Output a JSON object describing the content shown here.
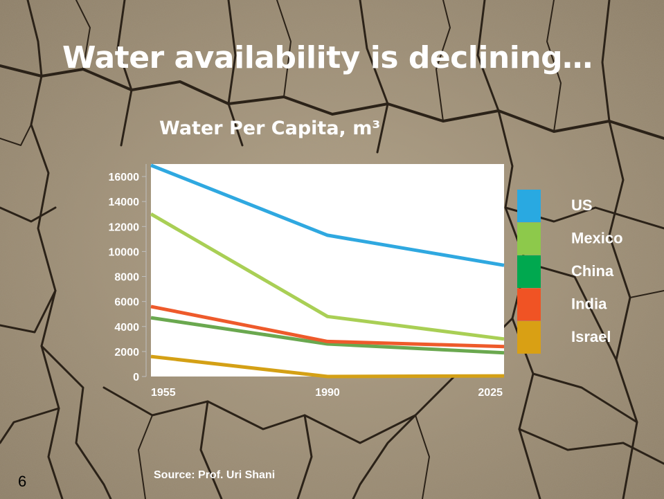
{
  "slide": {
    "title": "Water availability is declining…",
    "number": "6",
    "source": "Source: Prof. Uri Shani"
  },
  "chart_data": {
    "type": "line",
    "title": "Water Per Capita, m³",
    "x": [
      "1955",
      "1990",
      "2025"
    ],
    "xlabel": "",
    "ylabel": "",
    "ylim": [
      0,
      17000
    ],
    "yticks": [
      0,
      2000,
      4000,
      6000,
      8000,
      10000,
      12000,
      14000,
      16000
    ],
    "grid": false,
    "legend_position": "right",
    "series": [
      {
        "name": "US",
        "color": "#2fa8e0",
        "values": [
          16900,
          11300,
          8900
        ]
      },
      {
        "name": "Mexico",
        "color": "#a9cf55",
        "values": [
          13000,
          4800,
          3000
        ]
      },
      {
        "name": "China",
        "color": "#6aa84f",
        "values": [
          4700,
          2600,
          1900
        ]
      },
      {
        "name": "India",
        "color": "#ee5a2b",
        "values": [
          5600,
          2800,
          2400
        ]
      },
      {
        "name": "Israel",
        "color": "#d4a015",
        "values": [
          1600,
          0,
          50
        ]
      }
    ],
    "legend_swatch_colors": [
      "#29a9e1",
      "#8dc94b",
      "#00a84f",
      "#f05324",
      "#d9a014"
    ]
  }
}
